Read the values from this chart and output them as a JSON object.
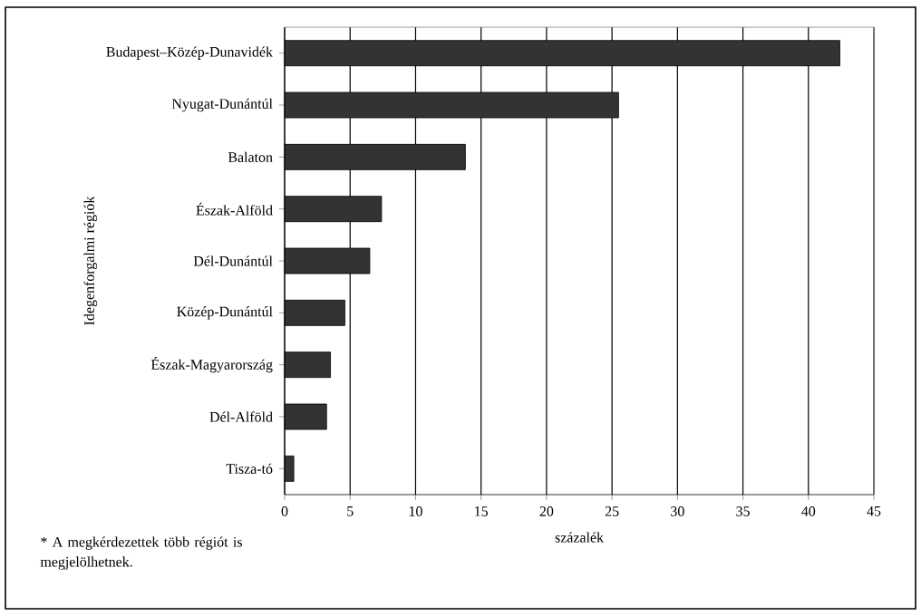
{
  "chart_data": {
    "type": "bar",
    "orientation": "horizontal",
    "xlabel": "százalék",
    "ylabel": "Idegenforgalmi régiók",
    "categories": [
      "Budapest–Közép-Dunavidék",
      "Nyugat-Dunántúl",
      "Balaton",
      "Észak-Alföld",
      "Dél-Dunántúl",
      "Közép-Dunántúl",
      "Észak-Magyarország",
      "Dél-Alföld",
      "Tisza-tó"
    ],
    "values": [
      42.4,
      25.5,
      13.8,
      7.4,
      6.5,
      4.6,
      3.5,
      3.2,
      0.7
    ],
    "color": "#333333",
    "xlim": [
      0,
      45
    ],
    "xticks": [
      0,
      5,
      10,
      15,
      20,
      25,
      30,
      35,
      40,
      45
    ],
    "grid": "x",
    "annotations": [
      "* A megkérdezettek több régiót is megjelölhetnek."
    ]
  }
}
